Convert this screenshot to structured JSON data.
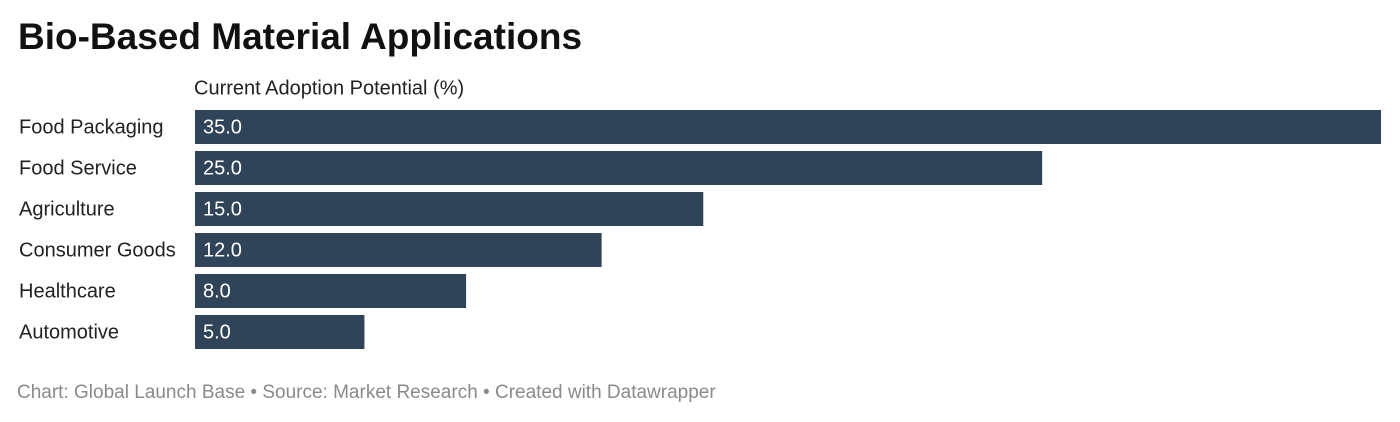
{
  "chart_data": {
    "type": "bar",
    "orientation": "horizontal",
    "title": "Bio-Based Material Applications",
    "categories": [
      "Food Packaging",
      "Food Service",
      "Agriculture",
      "Consumer Goods",
      "Healthcare",
      "Automotive"
    ],
    "series": [
      {
        "name": "Current Adoption Potential (%)",
        "color": "#2f4359",
        "values": [
          35,
          25,
          15,
          12,
          8,
          5
        ],
        "value_labels": [
          "35.0",
          "25.0",
          "15.0",
          "12.0",
          "8.0",
          "5.0"
        ]
      }
    ],
    "footer": "Chart: Global Launch Base • Source: Market Research • Created with Datawrapper"
  }
}
